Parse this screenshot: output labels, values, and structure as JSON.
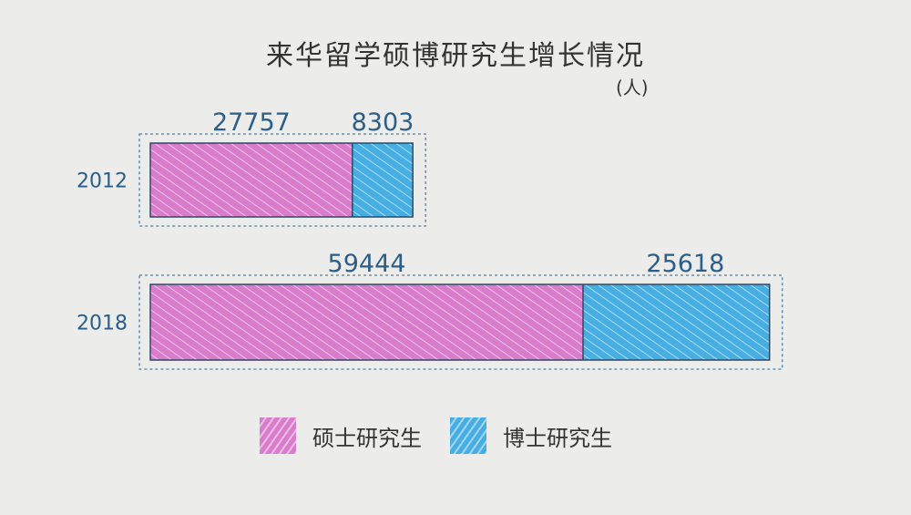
{
  "chart_data": {
    "type": "bar",
    "orientation": "horizontal",
    "stacked": true,
    "title": "来华留学硕博研究生增长情况",
    "unit": "(人)",
    "categories": [
      "2012",
      "2018"
    ],
    "series": [
      {
        "name": "硕士研究生",
        "values": [
          27757,
          59444
        ],
        "color": "#d97ccb"
      },
      {
        "name": "博士研究生",
        "values": [
          8303,
          25618
        ],
        "color": "#46aee2"
      }
    ],
    "grid": false,
    "legend": "bottom"
  },
  "colors": {
    "label_text": "#2c5e88",
    "frame": "#4a7fa8",
    "background": "#ececeb"
  }
}
